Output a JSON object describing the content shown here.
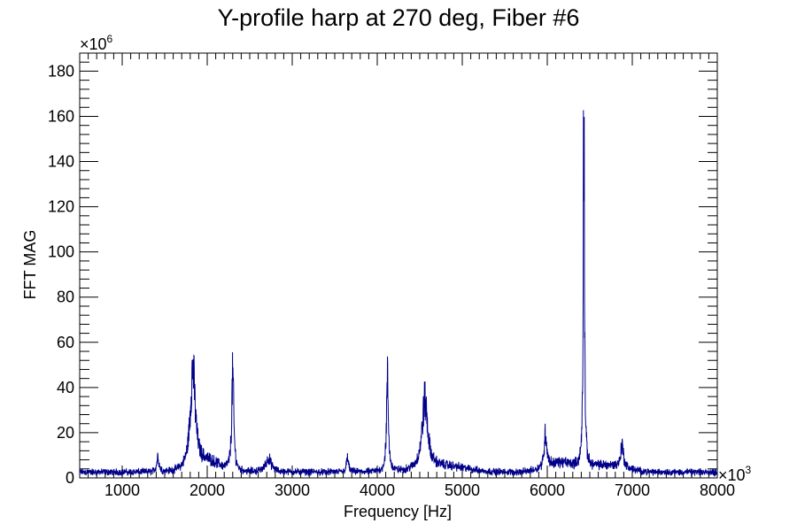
{
  "chart_data": {
    "type": "line",
    "title": "Y-profile harp at 270 deg, Fiber #6",
    "xlabel": "Frequency [Hz]",
    "ylabel": "FFT MAG",
    "x_multiplier": {
      "base": "×10",
      "exponent": "3"
    },
    "y_multiplier": {
      "base": "×10",
      "exponent": "6"
    },
    "xlim": [
      500,
      8000
    ],
    "ylim": [
      0,
      188
    ],
    "x_ticks": [
      1000,
      2000,
      3000,
      4000,
      5000,
      6000,
      7000,
      8000
    ],
    "x_tick_labels": [
      "1000",
      "2000",
      "3000",
      "4000",
      "5000",
      "6000",
      "7000",
      "8000"
    ],
    "y_ticks": [
      0,
      20,
      40,
      60,
      80,
      100,
      120,
      140,
      160,
      180
    ],
    "y_tick_labels": [
      "0",
      "20",
      "40",
      "60",
      "80",
      "100",
      "120",
      "140",
      "160",
      "180"
    ],
    "line_color": "#00008b",
    "baseline": 2.5,
    "peaks": [
      {
        "x": 1420,
        "y": 7,
        "width": 15
      },
      {
        "x": 1830,
        "y": 44,
        "width": 35
      },
      {
        "x": 2300,
        "y": 42,
        "width": 15
      },
      {
        "x": 2720,
        "y": 6,
        "width": 40
      },
      {
        "x": 3650,
        "y": 6,
        "width": 15
      },
      {
        "x": 4120,
        "y": 40,
        "width": 14
      },
      {
        "x": 4560,
        "y": 30,
        "width": 40
      },
      {
        "x": 5980,
        "y": 15,
        "width": 18
      },
      {
        "x": 6430,
        "y": 180,
        "width": 8
      },
      {
        "x": 6880,
        "y": 10,
        "width": 20
      }
    ],
    "grid": false,
    "legend": "none"
  }
}
